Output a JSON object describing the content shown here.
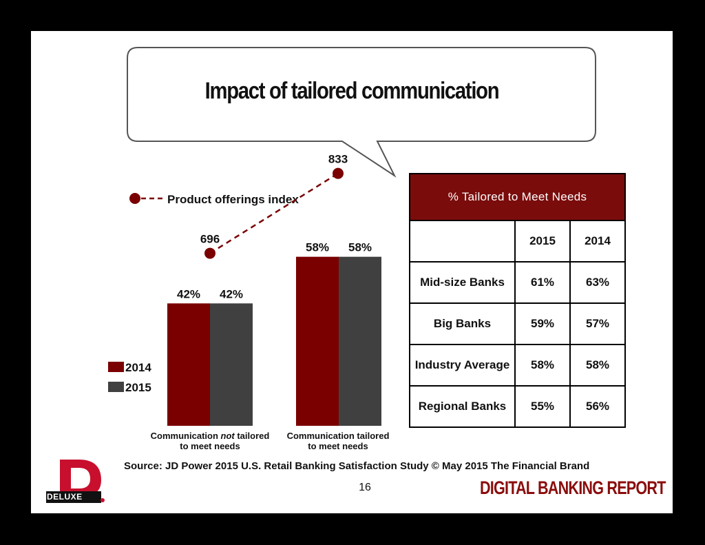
{
  "title": "Impact of tailored communication",
  "legend": {
    "index_label": "Product offerings index",
    "series_2014": "2014",
    "series_2015": "2015"
  },
  "colors": {
    "y2014": "#7a0000",
    "y2015": "#404040",
    "header": "#7a0c0c",
    "brand": "#8b0c0c"
  },
  "chart_data": {
    "type": "bar",
    "categories": [
      "Communication not tailored to meet needs",
      "Communication tailored to meet needs"
    ],
    "category_lines": [
      [
        {
          "text": "Communication ",
          "italic": false
        },
        {
          "text": "not",
          "italic": true
        },
        {
          "text": " tailored",
          "italic": false
        }
      ],
      [
        {
          "text": "Communication tailored",
          "italic": false
        }
      ]
    ],
    "category_line2": [
      "to meet needs",
      "to meet needs"
    ],
    "series": [
      {
        "name": "2014",
        "values": [
          42,
          58
        ],
        "labels": [
          "42%",
          "58%"
        ]
      },
      {
        "name": "2015",
        "values": [
          42,
          58
        ],
        "labels": [
          "42%",
          "58%"
        ]
      }
    ],
    "index_series": {
      "name": "Product offerings index",
      "values": [
        696,
        833
      ],
      "labels": [
        "696",
        "833"
      ]
    },
    "ylim": [
      0,
      100
    ],
    "index_ylim": [
      400,
      900
    ],
    "xlabel": "",
    "ylabel": ""
  },
  "table": {
    "header": "% Tailored to Meet Needs",
    "columns": [
      "",
      "2015",
      "2014"
    ],
    "rows": [
      [
        "Mid-size Banks",
        "61%",
        "63%"
      ],
      [
        "Big Banks",
        "59%",
        "57%"
      ],
      [
        "Industry Average",
        "58%",
        "58%"
      ],
      [
        "Regional Banks",
        "55%",
        "56%"
      ]
    ]
  },
  "source": "Source: JD Power 2015 U.S. Retail Banking Satisfaction Study © May 2015 The Financial Brand",
  "page_number": "16",
  "brand_text": "DIGITAL BANKING REPORT",
  "logo_text": "DELUXE"
}
